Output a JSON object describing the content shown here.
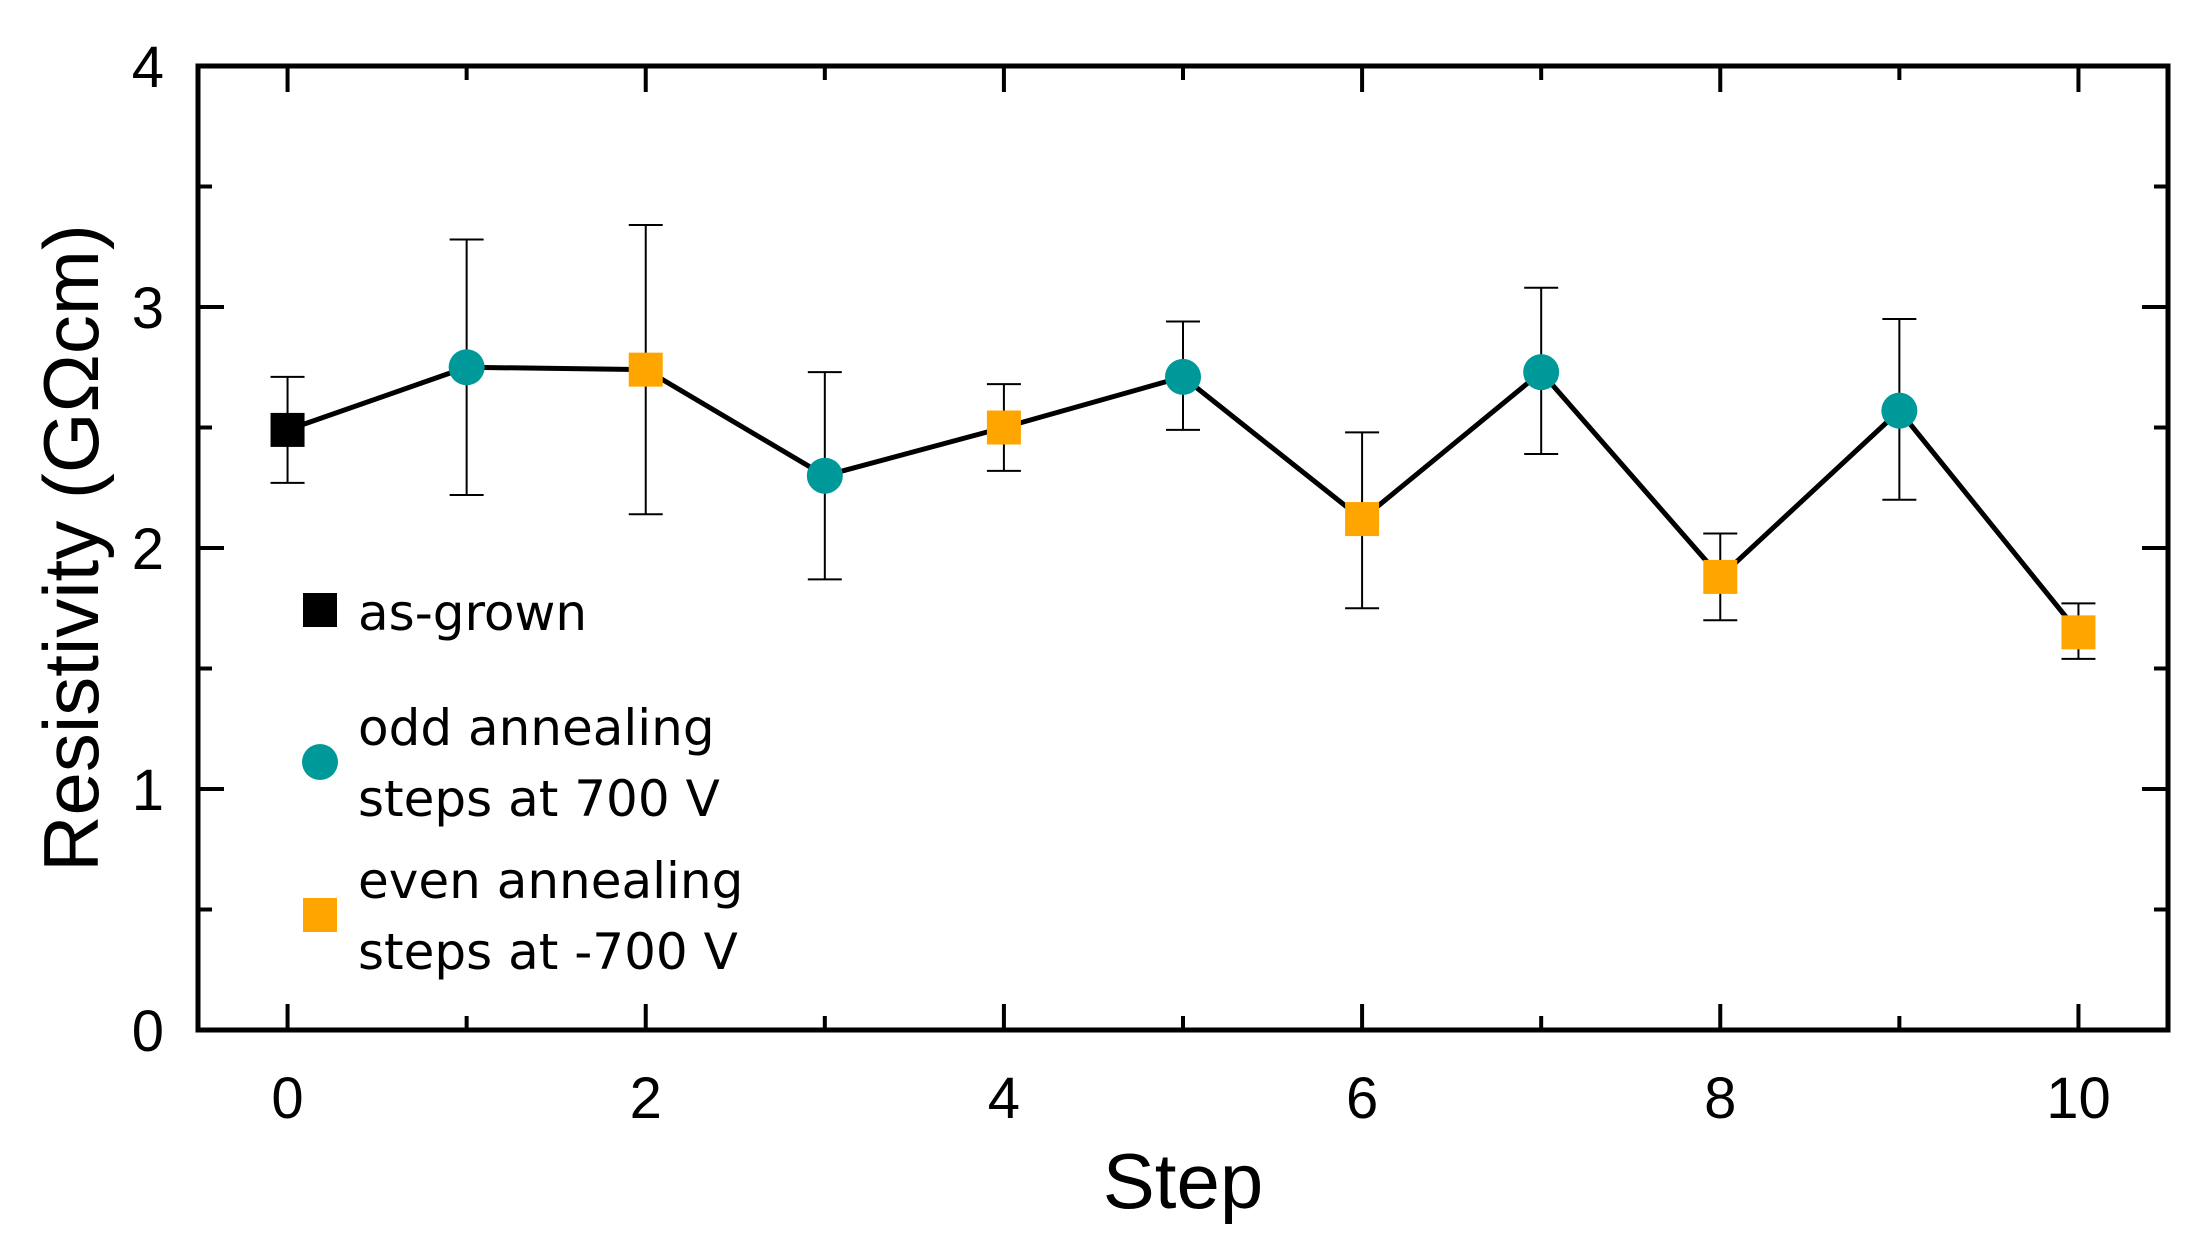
{
  "chart_data": {
    "type": "scatter",
    "title": "",
    "xlabel": "Step",
    "ylabel": "Resistivity (GΩcm)",
    "xlim": [
      -0.5,
      10.5
    ],
    "ylim": [
      0,
      4
    ],
    "xticks": [
      0,
      2,
      4,
      6,
      8,
      10
    ],
    "xtick_labels": [
      "0",
      "2",
      "4",
      "6",
      "8",
      "10"
    ],
    "yticks": [
      0,
      1,
      2,
      3,
      4
    ],
    "ytick_labels": [
      "0",
      "1",
      "2",
      "3",
      "4"
    ],
    "x_minor_ticks": [
      1,
      3,
      5,
      7,
      9
    ],
    "y_minor_ticks": [
      0.5,
      1.5,
      2.5,
      3.5
    ],
    "grid": false,
    "line_color": "#000000",
    "series": [
      {
        "name": "as-grown",
        "legend_lines": [
          "as-grown"
        ],
        "marker": "square",
        "color": "#000000",
        "points": [
          {
            "x": 0,
            "y": 2.49,
            "err_low": 2.27,
            "err_high": 2.71
          }
        ]
      },
      {
        "name": "odd annealing steps  at 700 V",
        "legend_lines": [
          "odd annealing",
          "steps  at 700 V"
        ],
        "marker": "circle",
        "color": "#009999",
        "points": [
          {
            "x": 1,
            "y": 2.75,
            "err_low": 2.22,
            "err_high": 3.28
          },
          {
            "x": 3,
            "y": 2.3,
            "err_low": 1.87,
            "err_high": 2.73
          },
          {
            "x": 5,
            "y": 2.71,
            "err_low": 2.49,
            "err_high": 2.94
          },
          {
            "x": 7,
            "y": 2.73,
            "err_low": 2.39,
            "err_high": 3.08
          },
          {
            "x": 9,
            "y": 2.57,
            "err_low": 2.2,
            "err_high": 2.95
          }
        ]
      },
      {
        "name": "even annealing steps  at -700 V",
        "legend_lines": [
          "even annealing",
          "steps  at -700 V"
        ],
        "marker": "square",
        "color": "#ffa500",
        "points": [
          {
            "x": 2,
            "y": 2.74,
            "err_low": 2.14,
            "err_high": 3.34
          },
          {
            "x": 4,
            "y": 2.5,
            "err_low": 2.32,
            "err_high": 2.68
          },
          {
            "x": 6,
            "y": 2.12,
            "err_low": 1.75,
            "err_high": 2.48
          },
          {
            "x": 8,
            "y": 1.88,
            "err_low": 1.7,
            "err_high": 2.06
          },
          {
            "x": 10,
            "y": 1.65,
            "err_low": 1.54,
            "err_high": 1.77
          }
        ]
      }
    ],
    "legend_position": "left"
  }
}
